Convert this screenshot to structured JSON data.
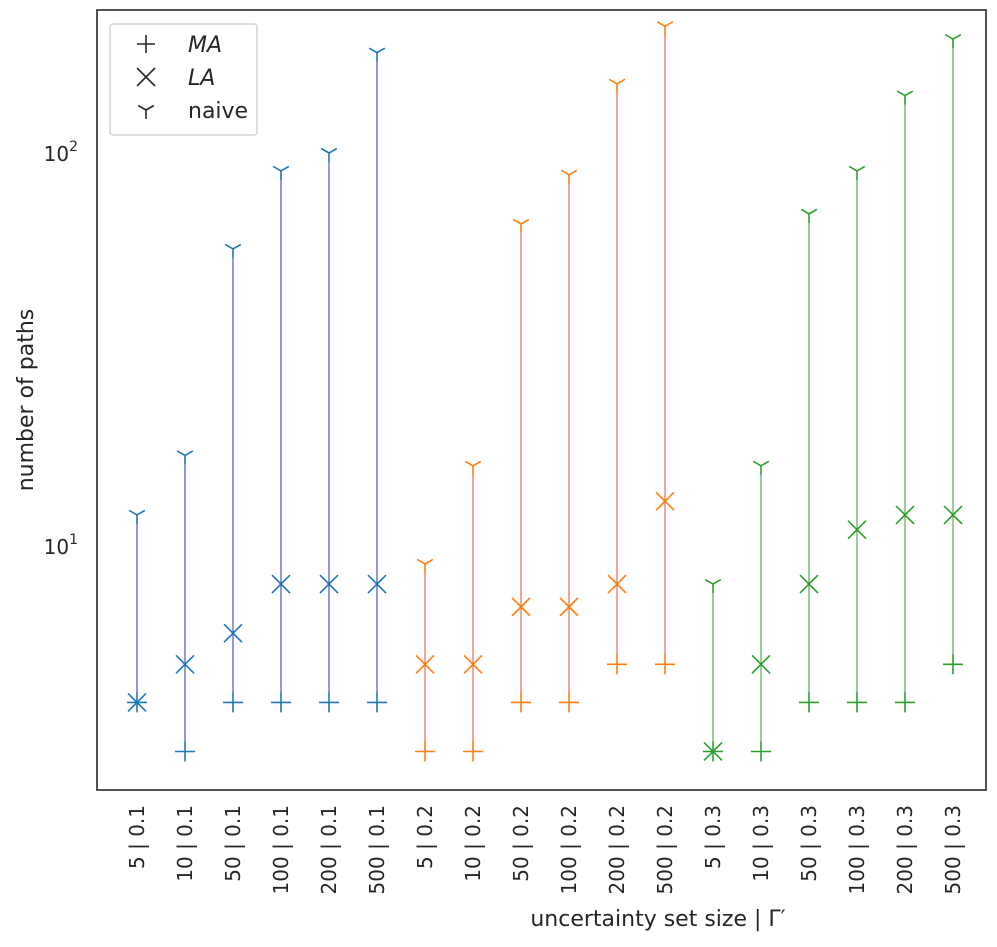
{
  "chart_data": {
    "type": "scatter",
    "title": "",
    "xlabel": "uncertainty set size | Γ′",
    "ylabel": "number of paths",
    "yscale": "log",
    "ylim": [
      2.9,
      230
    ],
    "grid": false,
    "legend_position": "top-left",
    "categories": [
      "5 | 0.1",
      "10 | 0.1",
      "50 | 0.1",
      "100 | 0.1",
      "200 | 0.1",
      "500 | 0.1",
      "5 | 0.2",
      "10 | 0.2",
      "50 | 0.2",
      "100 | 0.2",
      "200 | 0.2",
      "500 | 0.2",
      "5 | 0.3",
      "10 | 0.3",
      "50 | 0.3",
      "100 | 0.3",
      "200 | 0.3",
      "500 | 0.3"
    ],
    "y_ticks": [
      {
        "value": 10,
        "base": "10",
        "exp": "1"
      },
      {
        "value": 100,
        "base": "10",
        "exp": "2"
      }
    ],
    "legend": [
      {
        "label": "MA",
        "marker": "plus",
        "italic": true
      },
      {
        "label": "LA",
        "marker": "x",
        "italic": true
      },
      {
        "label": "naive",
        "marker": "tri-down",
        "italic": false
      }
    ],
    "groups": [
      {
        "marker_color": "#1f77b4",
        "line_color": "#2a2fd2",
        "MA": [
          4,
          3,
          4,
          4,
          4,
          4
        ],
        "LA": [
          4,
          5,
          6,
          8,
          8,
          8
        ],
        "naive": [
          12,
          17,
          57,
          90,
          100,
          180
        ]
      },
      {
        "marker_color": "#ff7f0e",
        "line_color": "#ee4b3a",
        "MA": [
          3,
          3,
          4,
          4,
          5,
          5
        ],
        "LA": [
          5,
          5,
          7,
          7,
          8,
          13
        ],
        "naive": [
          9,
          16,
          66,
          88,
          150,
          210
        ]
      },
      {
        "marker_color": "#2ca02c",
        "line_color": "#2ca02c",
        "MA": [
          3,
          3,
          4,
          4,
          4,
          5
        ],
        "LA": [
          3,
          5,
          8,
          11,
          12,
          12
        ],
        "naive": [
          8,
          16,
          70,
          90,
          140,
          195
        ]
      }
    ]
  }
}
